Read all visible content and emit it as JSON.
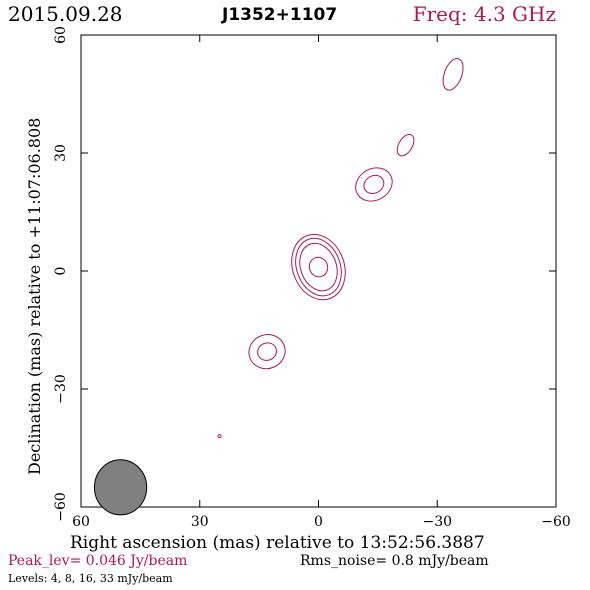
{
  "header": {
    "date": "2015.09.28",
    "source": "J1352+1107",
    "freq_label": "Freq: 4.3 GHz"
  },
  "footer": {
    "peak": "Peak_lev=  0.046 Jy/beam",
    "rms": "Rms_noise=  0.8 mJy/beam",
    "levels": "Levels:  4,  8,  16,  33 mJy/beam"
  },
  "colors": {
    "contour": "#b5174b",
    "beam_fill": "#808080",
    "axis": "#000000"
  },
  "chart_data": {
    "type": "contour",
    "xlabel": "Right ascension (mas) relative to 13:52:56.3887",
    "ylabel": "Declination (mas) relative to +11:07:06.808",
    "xlim": [
      60,
      -60
    ],
    "ylim": [
      -60,
      60
    ],
    "x_ticks": [
      60,
      30,
      0,
      -30,
      -60
    ],
    "y_ticks": [
      -60,
      -30,
      0,
      30,
      60
    ],
    "contour_levels_mJy_per_beam": [
      4,
      8,
      16,
      33
    ],
    "peak_Jy_per_beam": 0.046,
    "rms_noise_mJy_per_beam": 0.8,
    "components": [
      {
        "x": 0,
        "y": 1,
        "levels": [
          4,
          8,
          16,
          33
        ],
        "rx": [
          6.5,
          5.5,
          4.5,
          2.3
        ],
        "ry": [
          8.5,
          7.5,
          6.2,
          2.5
        ],
        "angle": -20
      },
      {
        "x": -14,
        "y": 22,
        "levels": [
          4,
          8
        ],
        "rx": [
          4.8,
          2.6
        ],
        "ry": [
          4.0,
          2.2
        ],
        "angle": -30
      },
      {
        "x": 13,
        "y": -20.5,
        "levels": [
          4,
          8
        ],
        "rx": [
          4.6,
          2.4
        ],
        "ry": [
          4.3,
          2.2
        ],
        "angle": -20
      },
      {
        "x": -34,
        "y": 50,
        "levels": [
          4
        ],
        "rx": [
          2.2
        ],
        "ry": [
          4.2
        ],
        "angle": 20
      },
      {
        "x": -22,
        "y": 32,
        "levels": [
          4
        ],
        "rx": [
          1.7
        ],
        "ry": [
          3.0
        ],
        "angle": 30
      },
      {
        "x": 25,
        "y": -42,
        "levels": [
          4
        ],
        "rx": [
          0.4
        ],
        "ry": [
          0.4
        ],
        "angle": 0
      }
    ],
    "beam": {
      "x": 50,
      "y": -55,
      "major": 7,
      "minor": 6.6,
      "angle": 0
    }
  }
}
